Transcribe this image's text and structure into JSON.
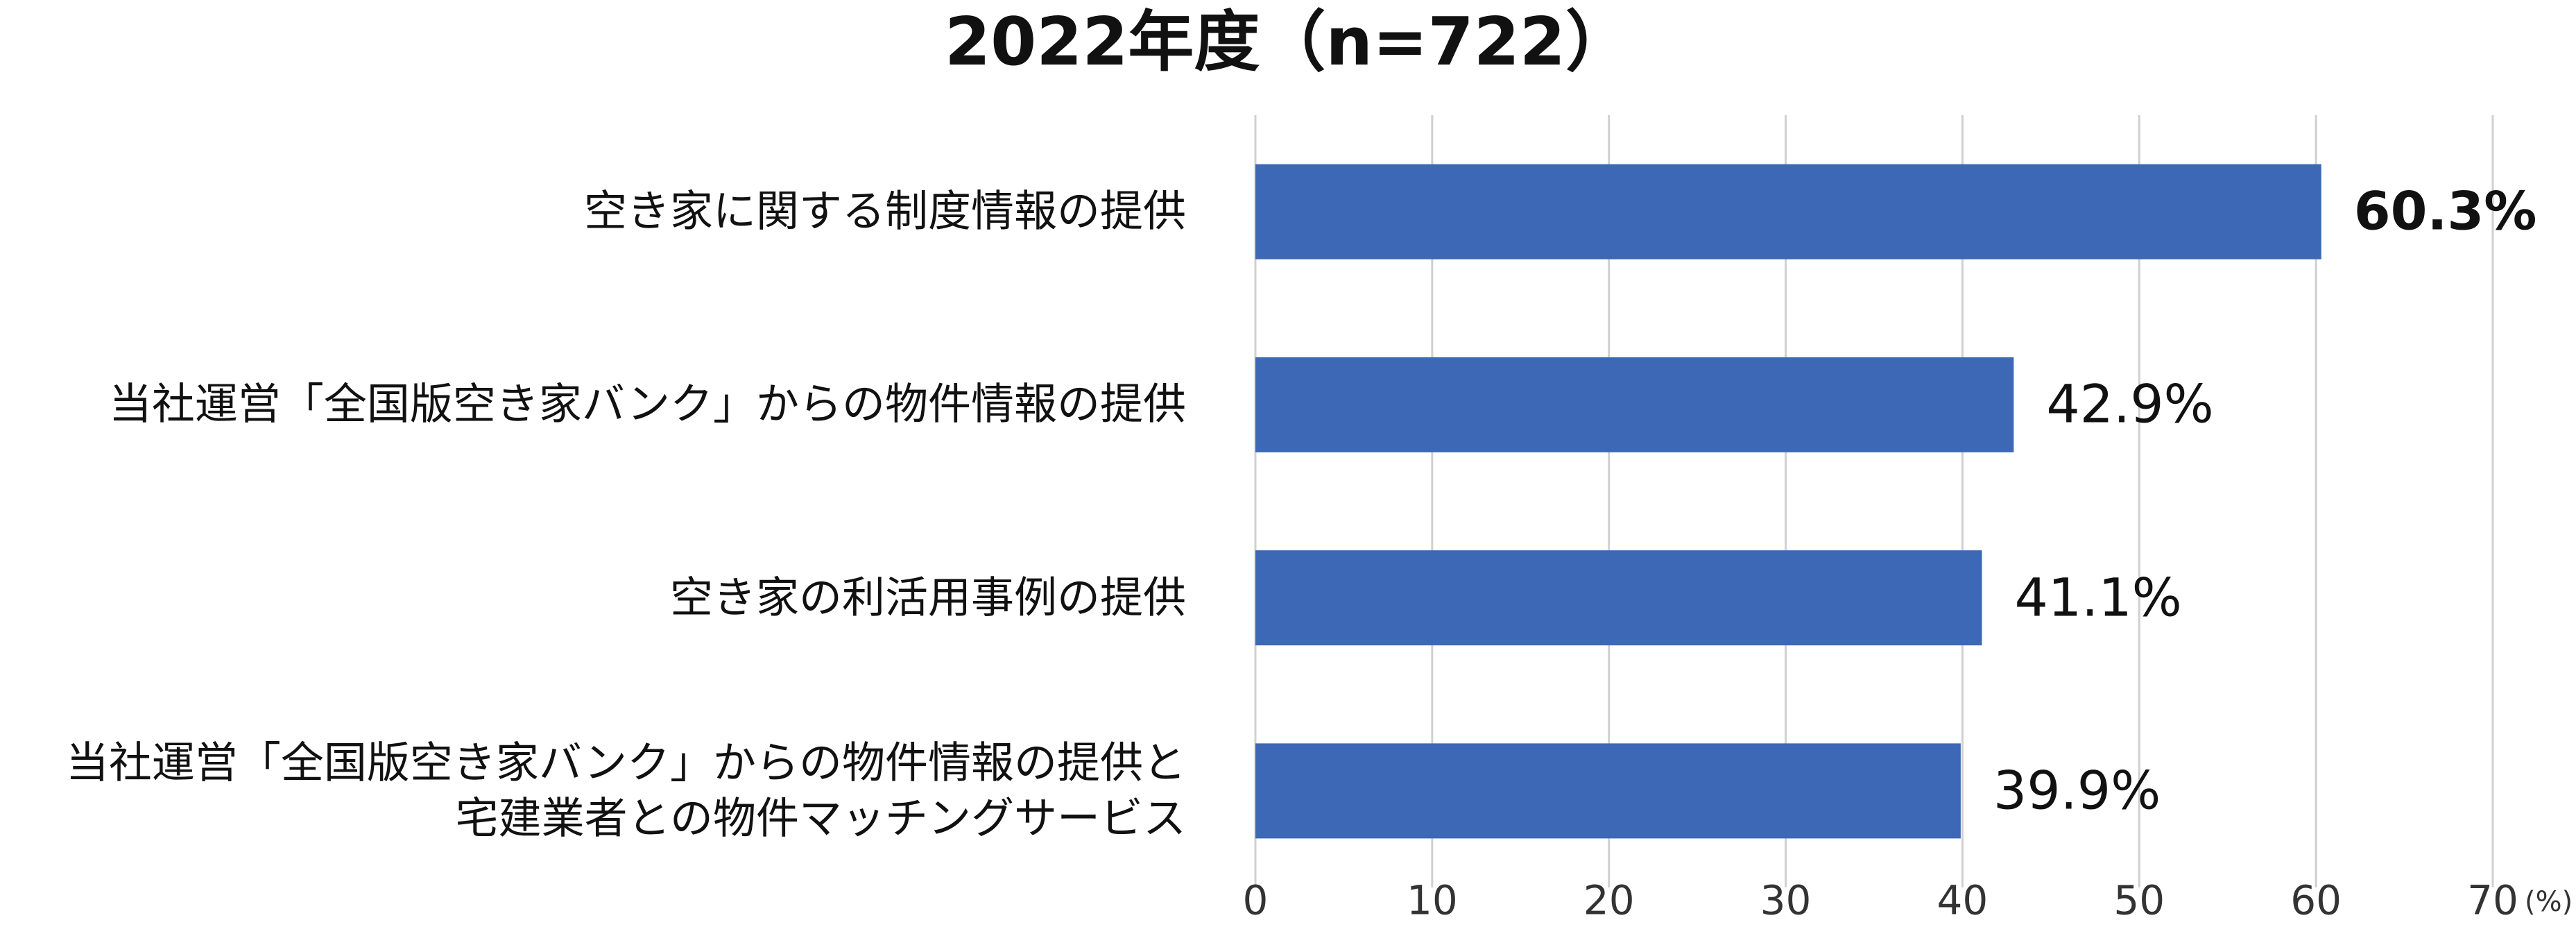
{
  "chart_data": {
    "type": "bar",
    "orientation": "horizontal",
    "title": "2022年度（n=722）",
    "categories": [
      "空き家に関する制度情報の提供",
      "当社運営「全国版空き家バンク」からの物件情報の提供",
      "空き家の利活用事例の提供",
      "当社運営「全国版空き家バンク」からの物件情報の提供と\n宅建業者との物件マッチングサービス"
    ],
    "values": [
      60.3,
      42.9,
      41.1,
      39.9
    ],
    "value_labels": [
      "60.3%",
      "42.9%",
      "41.1%",
      "39.9%"
    ],
    "color": "#3c68b5",
    "xlim": [
      0,
      70
    ],
    "xticks": [
      0,
      10,
      20,
      30,
      40,
      50,
      60,
      70
    ],
    "xlabel": "(%)",
    "grid": true
  }
}
